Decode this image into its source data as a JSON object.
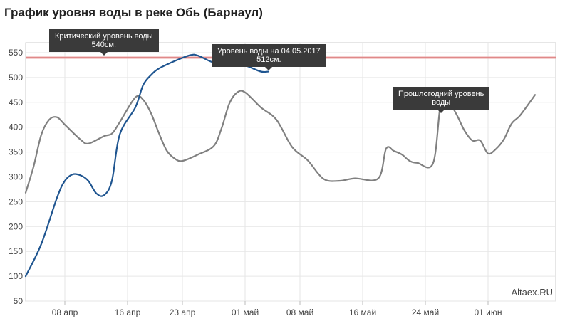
{
  "title": "График уровня воды в реке Обь (Барнаул)",
  "watermark": "Altaex.RU",
  "tooltips": {
    "critical": {
      "line1": "Критический уровень воды",
      "line2": "540см."
    },
    "current": {
      "line1": "Уровень воды на 04.05.2017",
      "line2": "512см."
    },
    "last_year": {
      "line1": "Прошлогодний уровень",
      "line2": "воды"
    }
  },
  "colors": {
    "current_series": "#1f5590",
    "last_year_series": "#808080",
    "critical_line": "#e8a2a2",
    "tooltip_bg": "#3a3a3a",
    "grid": "#e6e6e6"
  },
  "chart_data": {
    "type": "line",
    "title": "График уровня воды в реке Обь (Барнаул)",
    "x_ticks": [
      "08 апр",
      "16 апр",
      "23 апр",
      "01 май",
      "08 май",
      "16 май",
      "24 май",
      "01 июн"
    ],
    "y_ticks": [
      50,
      100,
      150,
      200,
      250,
      300,
      350,
      400,
      450,
      500,
      550
    ],
    "ylim": [
      50,
      570
    ],
    "x_range": [
      "2017-04-03",
      "2017-06-05"
    ],
    "grid": true,
    "reference_lines": [
      {
        "value": 540,
        "label": "Критический уровень воды 540см."
      }
    ],
    "series": [
      {
        "name": "Уровень воды",
        "color": "#1f5590",
        "points": [
          [
            "2017-04-03",
            100
          ],
          [
            "2017-04-05",
            165
          ],
          [
            "2017-04-07",
            258
          ],
          [
            "2017-04-08",
            292
          ],
          [
            "2017-04-09",
            305
          ],
          [
            "2017-04-10",
            303
          ],
          [
            "2017-04-11",
            292
          ],
          [
            "2017-04-12",
            267
          ],
          [
            "2017-04-13",
            263
          ],
          [
            "2017-04-14",
            292
          ],
          [
            "2017-04-15",
            385
          ],
          [
            "2017-04-17",
            440
          ],
          [
            "2017-04-18",
            485
          ],
          [
            "2017-04-19",
            505
          ],
          [
            "2017-04-20",
            518
          ],
          [
            "2017-04-22",
            533
          ],
          [
            "2017-04-24",
            545
          ],
          [
            "2017-04-25",
            544
          ],
          [
            "2017-04-27",
            530
          ],
          [
            "2017-04-29",
            528
          ],
          [
            "2017-05-01",
            524
          ],
          [
            "2017-05-03",
            512
          ],
          [
            "2017-05-04",
            512
          ]
        ]
      },
      {
        "name": "Прошлогодний уровень воды",
        "color": "#808080",
        "points": [
          [
            "2017-04-03",
            268
          ],
          [
            "2017-04-04",
            320
          ],
          [
            "2017-04-05",
            385
          ],
          [
            "2017-04-06",
            415
          ],
          [
            "2017-04-07",
            420
          ],
          [
            "2017-04-08",
            405
          ],
          [
            "2017-04-10",
            375
          ],
          [
            "2017-04-11",
            367
          ],
          [
            "2017-04-13",
            382
          ],
          [
            "2017-04-14",
            387
          ],
          [
            "2017-04-15",
            410
          ],
          [
            "2017-04-17",
            460
          ],
          [
            "2017-04-18",
            455
          ],
          [
            "2017-04-19",
            428
          ],
          [
            "2017-04-20",
            388
          ],
          [
            "2017-04-21",
            353
          ],
          [
            "2017-04-22",
            337
          ],
          [
            "2017-04-23",
            332
          ],
          [
            "2017-04-25",
            345
          ],
          [
            "2017-04-27",
            362
          ],
          [
            "2017-04-28",
            398
          ],
          [
            "2017-04-29",
            448
          ],
          [
            "2017-04-30",
            470
          ],
          [
            "2017-05-01",
            470
          ],
          [
            "2017-05-03",
            440
          ],
          [
            "2017-05-05",
            415
          ],
          [
            "2017-05-07",
            360
          ],
          [
            "2017-05-09",
            333
          ],
          [
            "2017-05-11",
            296
          ],
          [
            "2017-05-13",
            292
          ],
          [
            "2017-05-15",
            297
          ],
          [
            "2017-05-18",
            297
          ],
          [
            "2017-05-19",
            357
          ],
          [
            "2017-05-20",
            352
          ],
          [
            "2017-05-21",
            345
          ],
          [
            "2017-05-22",
            332
          ],
          [
            "2017-05-23",
            328
          ],
          [
            "2017-05-25",
            328
          ],
          [
            "2017-05-26",
            452
          ],
          [
            "2017-05-27",
            450
          ],
          [
            "2017-05-28",
            425
          ],
          [
            "2017-05-29",
            393
          ],
          [
            "2017-05-30",
            373
          ],
          [
            "2017-05-31",
            373
          ],
          [
            "2017-06-01",
            347
          ],
          [
            "2017-06-02",
            356
          ],
          [
            "2017-06-03",
            375
          ],
          [
            "2017-06-04",
            407
          ],
          [
            "2017-06-05",
            422
          ],
          [
            "2017-06-06",
            443
          ],
          [
            "2017-06-07",
            465
          ]
        ]
      }
    ]
  }
}
